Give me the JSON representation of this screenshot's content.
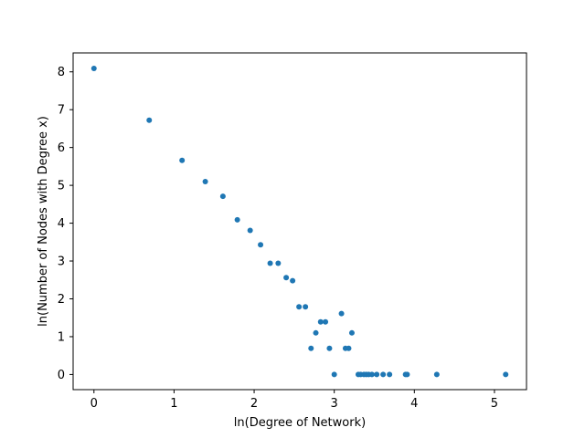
{
  "chart_data": {
    "type": "scatter",
    "title": "",
    "xlabel": "ln(Degree of Network)",
    "ylabel": "ln(Number of Nodes with Degree x)",
    "xlim": [
      -0.26,
      5.4
    ],
    "ylim": [
      -0.4,
      8.5
    ],
    "xticks": [
      0,
      1,
      2,
      3,
      4,
      5
    ],
    "yticks": [
      0,
      1,
      2,
      3,
      4,
      5,
      6,
      7,
      8
    ],
    "grid": false,
    "marker_color": "#1f77b4",
    "points": [
      {
        "x": 0.0,
        "y": 8.09
      },
      {
        "x": 0.69,
        "y": 6.72
      },
      {
        "x": 1.1,
        "y": 5.66
      },
      {
        "x": 1.39,
        "y": 5.1
      },
      {
        "x": 1.61,
        "y": 4.71
      },
      {
        "x": 1.79,
        "y": 4.09
      },
      {
        "x": 1.95,
        "y": 3.81
      },
      {
        "x": 2.08,
        "y": 3.43
      },
      {
        "x": 2.2,
        "y": 2.94
      },
      {
        "x": 2.3,
        "y": 2.94
      },
      {
        "x": 2.4,
        "y": 2.56
      },
      {
        "x": 2.48,
        "y": 2.48
      },
      {
        "x": 2.56,
        "y": 1.79
      },
      {
        "x": 2.64,
        "y": 1.79
      },
      {
        "x": 2.71,
        "y": 0.69
      },
      {
        "x": 2.77,
        "y": 1.1
      },
      {
        "x": 2.83,
        "y": 1.39
      },
      {
        "x": 2.89,
        "y": 1.39
      },
      {
        "x": 2.94,
        "y": 0.69
      },
      {
        "x": 3.0,
        "y": 0.0
      },
      {
        "x": 3.09,
        "y": 1.61
      },
      {
        "x": 3.14,
        "y": 0.69
      },
      {
        "x": 3.18,
        "y": 0.69
      },
      {
        "x": 3.22,
        "y": 1.1
      },
      {
        "x": 3.3,
        "y": 0.0
      },
      {
        "x": 3.33,
        "y": 0.0
      },
      {
        "x": 3.37,
        "y": 0.0
      },
      {
        "x": 3.4,
        "y": 0.0
      },
      {
        "x": 3.43,
        "y": 0.0
      },
      {
        "x": 3.47,
        "y": 0.0
      },
      {
        "x": 3.53,
        "y": 0.0
      },
      {
        "x": 3.61,
        "y": 0.0
      },
      {
        "x": 3.69,
        "y": 0.0
      },
      {
        "x": 3.89,
        "y": 0.0
      },
      {
        "x": 3.91,
        "y": 0.0
      },
      {
        "x": 4.28,
        "y": 0.0
      },
      {
        "x": 5.14,
        "y": 0.0
      }
    ]
  }
}
